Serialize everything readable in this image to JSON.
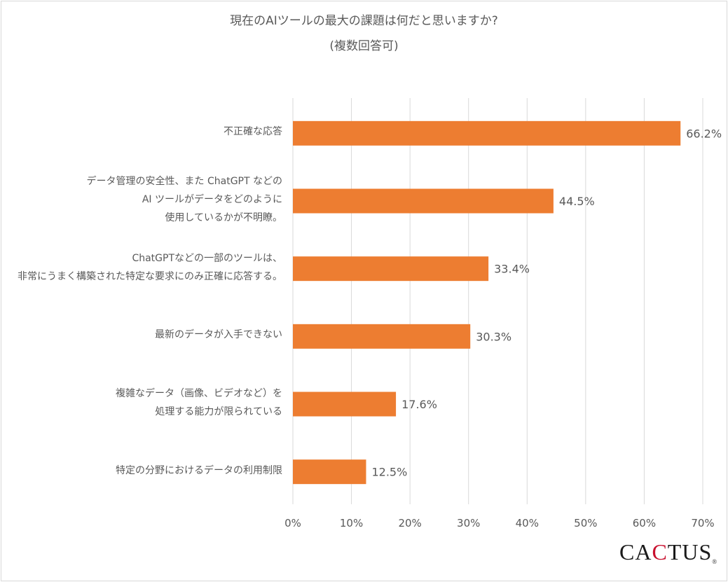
{
  "chart_data": {
    "type": "bar",
    "orientation": "horizontal",
    "title": "現在のAIツールの最大の課題は何だと思いますか?",
    "subtitle": "(複数回答可)",
    "categories": [
      "不正確な応答",
      "データ管理の安全性、また ChatGPT などの\nAI ツールがデータをどのように\n使用しているかが不明瞭。",
      "ChatGPTなどの一部のツールは、\n非常にうまく構築された特定な要求にのみ正確に応答する。",
      "最新のデータが入手できない",
      "複雑なデータ（画像、ビデオなど）を\n処理する能力が限られている",
      "特定の分野におけるデータの利用制限"
    ],
    "values": [
      66.2,
      44.5,
      33.4,
      30.3,
      17.6,
      12.5
    ],
    "value_labels": [
      "66.2%",
      "44.5%",
      "33.4%",
      "30.3%",
      "17.6%",
      "12.5%"
    ],
    "xlim": [
      0,
      70
    ],
    "x_ticks": [
      "0%",
      "10%",
      "20%",
      "30%",
      "40%",
      "50%",
      "60%",
      "70%"
    ],
    "grid": "vertical",
    "bar_color": "#ed7d31",
    "grid_color": "#d9d9d9"
  },
  "logo": {
    "text_before": "CA",
    "text_accent": "C",
    "text_after": "TUS",
    "reg": "®"
  }
}
